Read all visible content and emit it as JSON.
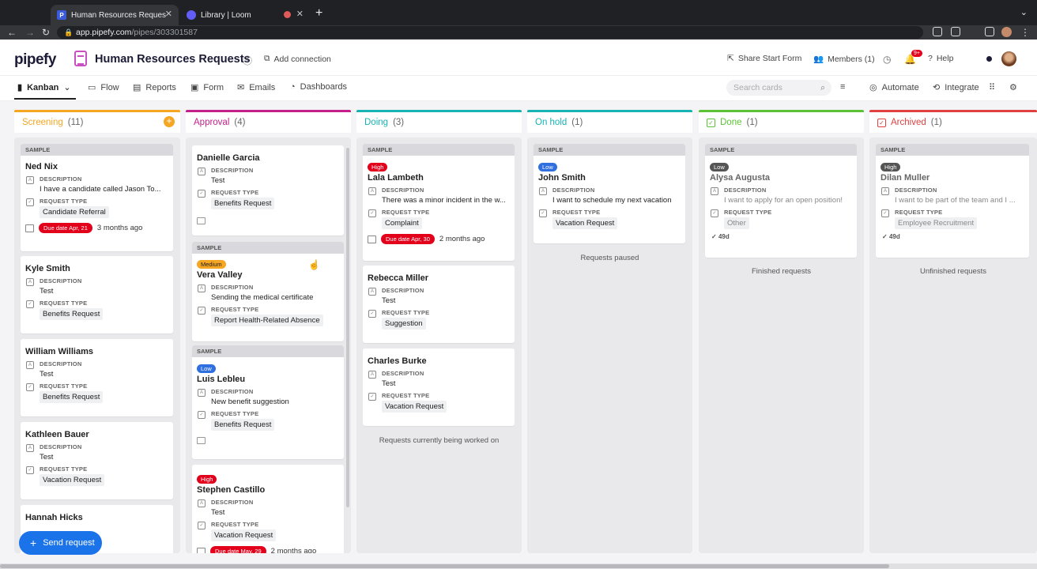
{
  "browser": {
    "tabs": [
      {
        "title": "Human Resources Requests - P",
        "favicon": "P"
      },
      {
        "title": "Library | Loom"
      }
    ],
    "url_host": "app.pipefy.com",
    "url_path": "/pipes/303301587"
  },
  "header": {
    "logo": "pipefy",
    "title": "Human Resources Requests",
    "add_connection": "Add connection",
    "share": "Share Start Form",
    "members": "Members (1)",
    "notif_count": "9+",
    "help": "Help"
  },
  "subnav": {
    "kanban": "Kanban",
    "flow": "Flow",
    "reports": "Reports",
    "form": "Form",
    "emails": "Emails",
    "dashboards": "Dashboards",
    "search_placeholder": "Search cards",
    "automate": "Automate",
    "integrate": "Integrate"
  },
  "columns": [
    {
      "name": "Screening",
      "count": "(11)",
      "color": "#f5a623"
    },
    {
      "name": "Approval",
      "count": "(4)",
      "color": "#c51f8a"
    },
    {
      "name": "Doing",
      "count": "(3)",
      "color": "#17b3b3"
    },
    {
      "name": "On hold",
      "count": "(1)",
      "color": "#17b3b3"
    },
    {
      "name": "Done",
      "count": "(1)",
      "color": "#5bc236"
    },
    {
      "name": "Archived",
      "count": "(1)",
      "color": "#e04040"
    }
  ],
  "labels": {
    "sample": "SAMPLE",
    "description": "DESCRIPTION",
    "request_type": "REQUEST TYPE"
  },
  "cards": {
    "ned": {
      "name": "Ned Nix",
      "desc": "I have a candidate called Jason To...",
      "type": "Candidate Referral",
      "due": "Due date Apr, 21",
      "ago": "3 months ago"
    },
    "kyle": {
      "name": "Kyle Smith",
      "desc": "Test",
      "type": "Benefits Request"
    },
    "william": {
      "name": "William Williams",
      "desc": "Test",
      "type": "Benefits Request"
    },
    "kathleen": {
      "name": "Kathleen Bauer",
      "desc": "Test",
      "type": "Vacation Request"
    },
    "hannah": {
      "name": "Hannah Hicks"
    },
    "danielle": {
      "name": "Danielle Garcia",
      "desc": "Test",
      "type": "Benefits Request"
    },
    "vera": {
      "badge": "Medium",
      "name": "Vera Valley",
      "desc": "Sending the medical certificate",
      "type": "Report Health-Related Absence"
    },
    "luis": {
      "badge": "Low",
      "name": "Luis Lebleu",
      "desc": "New benefit suggestion",
      "type": "Benefits Request"
    },
    "stephen": {
      "badge": "High",
      "name": "Stephen Castillo",
      "desc": "Test",
      "type": "Vacation Request",
      "due": "Due date May, 29",
      "ago": "2 months ago"
    },
    "lala": {
      "badge": "High",
      "name": "Lala Lambeth",
      "desc": "There was a minor incident in the w...",
      "type": "Complaint",
      "due": "Due date Apr, 30",
      "ago": "2 months ago"
    },
    "rebecca": {
      "name": "Rebecca Miller",
      "desc": "Test",
      "type": "Suggestion"
    },
    "charles": {
      "name": "Charles Burke",
      "desc": "Test",
      "type": "Vacation Request"
    },
    "john": {
      "badge": "Low",
      "name": "John Smith",
      "desc": "I want to schedule my next vacation",
      "type": "Vacation Request"
    },
    "alysa": {
      "badge": "Low",
      "name": "Alysa Augusta",
      "desc": "I want to apply for an open position!",
      "type": "Other",
      "days": "49d"
    },
    "dilan": {
      "badge": "High",
      "name": "Dilan Muller",
      "desc": "I want to be part of the team and I ...",
      "type": "Employee Recruitment",
      "days": "49d"
    }
  },
  "notes": {
    "doing": "Requests currently being worked on",
    "onhold": "Requests paused",
    "done": "Finished requests",
    "archived": "Unfinished requests"
  },
  "send_request": "Send request"
}
